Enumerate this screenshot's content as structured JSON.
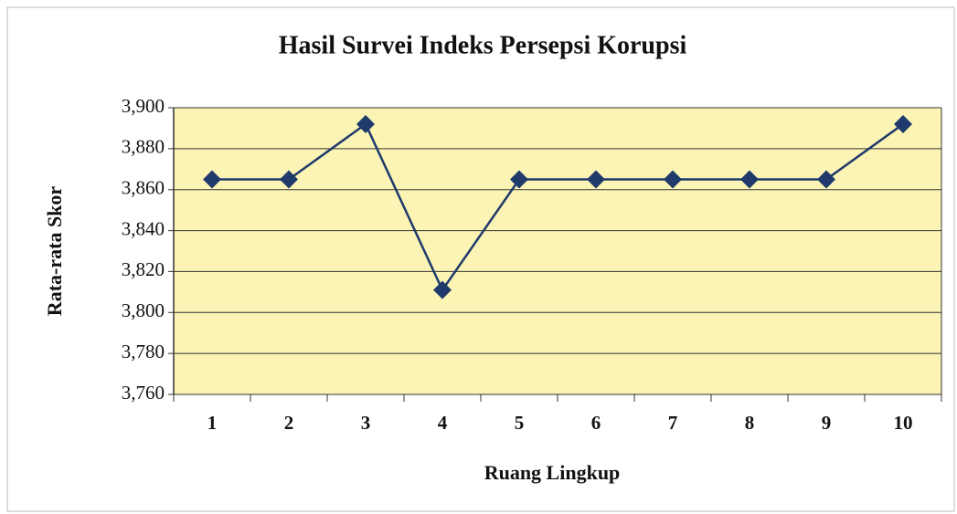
{
  "chart_data": {
    "type": "line",
    "title": "Hasil Survei Indeks Persepsi Korupsi",
    "x_label": "Ruang Lingkup",
    "y_label": "Rata-rata Skor",
    "categories": [
      "1",
      "2",
      "3",
      "4",
      "5",
      "6",
      "7",
      "8",
      "9",
      "10"
    ],
    "series": [
      {
        "name": "Rata-rata Skor",
        "color": "#1f3a6b",
        "values": [
          3.865,
          3.865,
          3.892,
          3.811,
          3.865,
          3.865,
          3.865,
          3.865,
          3.865,
          3.892
        ]
      }
    ],
    "ylim": [
      3.76,
      3.9
    ],
    "yticks": [
      {
        "value": 3.76,
        "label": "3,760"
      },
      {
        "value": 3.78,
        "label": "3,780"
      },
      {
        "value": 3.8,
        "label": "3,800"
      },
      {
        "value": 3.82,
        "label": "3,820"
      },
      {
        "value": 3.84,
        "label": "3,840"
      },
      {
        "value": 3.86,
        "label": "3,860"
      },
      {
        "value": 3.88,
        "label": "3,880"
      },
      {
        "value": 3.9,
        "label": "3,900"
      }
    ],
    "grid": true,
    "plot_background": "#fbf4b4"
  }
}
